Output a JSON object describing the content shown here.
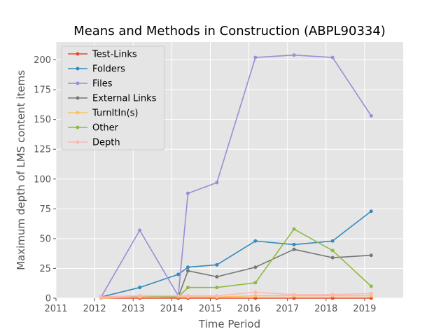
{
  "chart_data": {
    "type": "line",
    "title": "Means and Methods in Construction (ABPL90334)",
    "xlabel": "Time Period",
    "ylabel": "Maximum depth of LMS content items",
    "xlim": [
      2011,
      2020
    ],
    "ylim": [
      0,
      215
    ],
    "xticks": [
      2011,
      2012,
      2013,
      2014,
      2015,
      2016,
      2017,
      2018,
      2019
    ],
    "yticks": [
      0,
      25,
      50,
      75,
      100,
      125,
      150,
      175,
      200
    ],
    "grid": true,
    "legend_position": "top-left",
    "x": [
      2012.17,
      2013.17,
      2014.17,
      2014.42,
      2015.17,
      2016.17,
      2017.17,
      2018.17,
      2019.17
    ],
    "series": [
      {
        "name": "Test-Links",
        "color": "#E24A33",
        "values": [
          0,
          0,
          0,
          0,
          0,
          0,
          0,
          0,
          0
        ]
      },
      {
        "name": "Folders",
        "color": "#348ABD",
        "values": [
          1,
          9,
          20,
          26,
          28,
          48,
          45,
          48,
          73
        ]
      },
      {
        "name": "Files",
        "color": "#988ED5",
        "values": [
          1,
          57,
          2,
          88,
          97,
          202,
          204,
          202,
          153
        ]
      },
      {
        "name": "External Links",
        "color": "#777777",
        "values": [
          1,
          1,
          1,
          23,
          18,
          26,
          41,
          34,
          36
        ]
      },
      {
        "name": "TurnItIn(s)",
        "color": "#FBC15E",
        "values": [
          0,
          1,
          1,
          1,
          1,
          2,
          2,
          2,
          2
        ]
      },
      {
        "name": "Other",
        "color": "#8EBA42",
        "values": [
          1,
          2,
          1,
          9,
          9,
          13,
          58,
          40,
          10
        ]
      },
      {
        "name": "Depth",
        "color": "#FFB5B8",
        "values": [
          1,
          2,
          2,
          2,
          2,
          5,
          3,
          3,
          4
        ]
      }
    ]
  }
}
